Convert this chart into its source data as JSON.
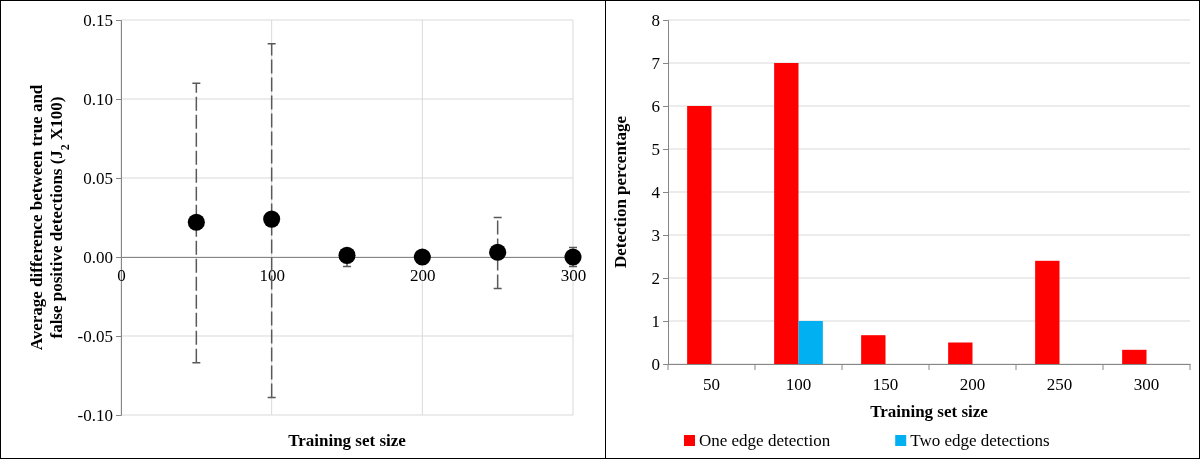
{
  "chart_data": [
    {
      "type": "scatter",
      "xlabel": "Training set size",
      "ylabel": "Average difference between true and\nfalse positive detections  (J$_{2}$ X100)",
      "x": [
        50,
        100,
        150,
        200,
        250,
        300
      ],
      "series": [
        {
          "color": "#000000",
          "values": [
            0.022,
            0.024,
            0.001,
            0,
            0.003,
            0
          ],
          "errors": [
            [
              -0.067,
              0.11
            ],
            [
              -0.089,
              0.135
            ],
            [
              -0.006,
              0.005
            ],
            null,
            [
              -0.02,
              0.025
            ],
            [
              -0.006,
              0.006
            ]
          ]
        }
      ],
      "xlim": [
        0,
        300
      ],
      "xticks": [
        0,
        100,
        200,
        300
      ],
      "ylim": [
        -0.1,
        0.15
      ],
      "yticks": [
        {
          "value": -0.1,
          "label": "-0.10"
        },
        {
          "value": -0.05,
          "label": "-0.05"
        },
        {
          "value": 0,
          "label": "0.00"
        },
        {
          "value": 0.05,
          "label": "0.05"
        },
        {
          "value": 0.1,
          "label": "0.10"
        },
        {
          "value": 0.15,
          "label": "0.15"
        }
      ],
      "grid": true,
      "marker": "circle"
    },
    {
      "type": "bar",
      "xlabel": "Training set size",
      "ylabel": "Detection percentage",
      "categories": [
        "50",
        "100",
        "150",
        "200",
        "250",
        "300"
      ],
      "series": [
        {
          "name": "One edge detection",
          "color": "#ff0000",
          "values": [
            6,
            7,
            0.67,
            0.5,
            2.4,
            0.33
          ]
        },
        {
          "name": "Two edge detections",
          "color": "#00b0f0",
          "values": [
            0,
            1,
            0,
            0,
            0,
            0
          ]
        }
      ],
      "ylim": [
        0,
        8
      ],
      "yticks": [
        0,
        1,
        2,
        3,
        4,
        5,
        6,
        7,
        8
      ],
      "grid": "y",
      "legend": "bottom"
    }
  ]
}
